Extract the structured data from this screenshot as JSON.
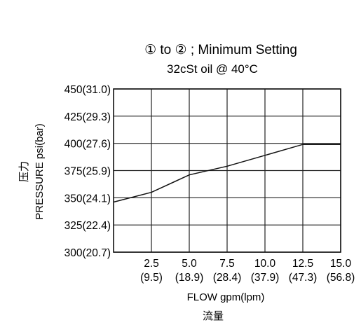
{
  "chart_data": {
    "type": "line",
    "title": "① to ② ; Minimum Setting",
    "subtitle": "32cSt oil @ 40°C",
    "xlabel": "FLOW gpm(lpm)",
    "xlabel_cn": "流量",
    "ylabel": "PRESSURE  psi(bar)",
    "ylabel_cn": "压力",
    "xlim": [
      0,
      15
    ],
    "ylim": [
      300,
      450
    ],
    "grid": true,
    "x_ticks": [
      {
        "value": 2.5,
        "label": "2.5",
        "sublabel": "(9.5)"
      },
      {
        "value": 5.0,
        "label": "5.0",
        "sublabel": "(18.9)"
      },
      {
        "value": 7.5,
        "label": "7.5",
        "sublabel": "(28.4)"
      },
      {
        "value": 10.0,
        "label": "10.0",
        "sublabel": "(37.9)"
      },
      {
        "value": 12.5,
        "label": "12.5",
        "sublabel": "(47.3)"
      },
      {
        "value": 15.0,
        "label": "15.0",
        "sublabel": "(56.8)"
      }
    ],
    "y_ticks": [
      {
        "value": 450,
        "label": "450(31.0)"
      },
      {
        "value": 425,
        "label": "425(29.3)"
      },
      {
        "value": 400,
        "label": "400(27.6)"
      },
      {
        "value": 375,
        "label": "375(25.9)"
      },
      {
        "value": 350,
        "label": "350(24.1)"
      },
      {
        "value": 325,
        "label": "325(22.4)"
      },
      {
        "value": 300,
        "label": "300(20.7)"
      }
    ],
    "series": [
      {
        "x": [
          0,
          2.5,
          5.0,
          7.5,
          10.0,
          12.5,
          15.0
        ],
        "y": [
          346,
          355,
          371,
          379,
          389,
          399,
          399
        ]
      }
    ]
  }
}
